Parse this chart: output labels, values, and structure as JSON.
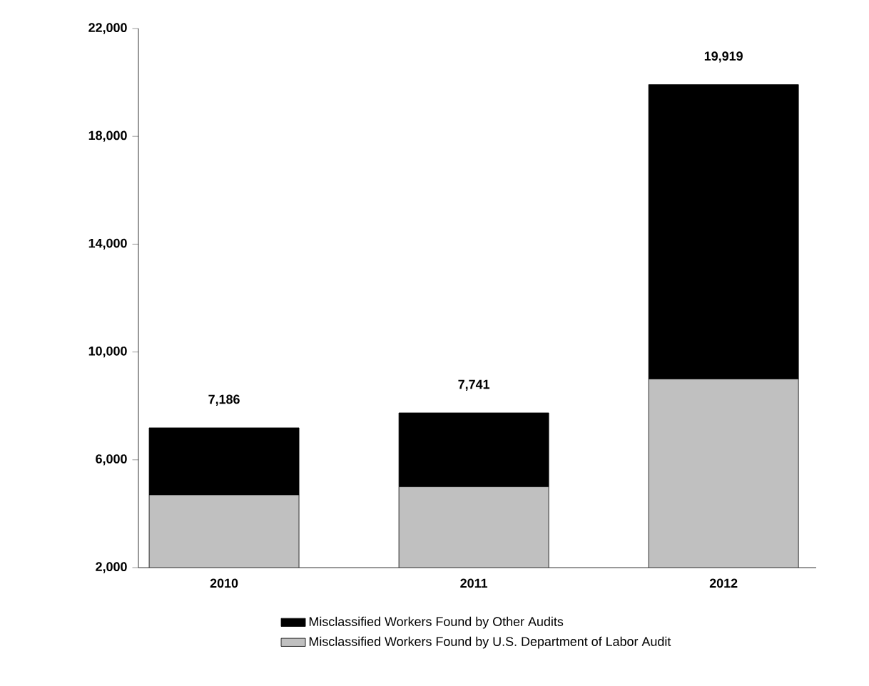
{
  "chart_data": {
    "type": "bar",
    "stacked": true,
    "categories": [
      "2010",
      "2011",
      "2012"
    ],
    "series": [
      {
        "name": "Misclassified Workers Found by U.S. Department of Labor Audit",
        "color": "#c0c0c0",
        "values": [
          4700,
          5000,
          9000
        ]
      },
      {
        "name": "Misclassified Workers Found by Other Audits",
        "color": "#000000",
        "values": [
          2486,
          2741,
          10919
        ]
      }
    ],
    "totals": [
      "7,186",
      "7,741",
      "19,919"
    ],
    "ylim": [
      2000,
      22000
    ],
    "yticks": [
      {
        "value": 2000,
        "label": "2,000"
      },
      {
        "value": 6000,
        "label": "6,000"
      },
      {
        "value": 10000,
        "label": "10,000"
      },
      {
        "value": 14000,
        "label": "14,000"
      },
      {
        "value": 18000,
        "label": "18,000"
      },
      {
        "value": 22000,
        "label": "22,000"
      }
    ],
    "legend": "bottom"
  }
}
